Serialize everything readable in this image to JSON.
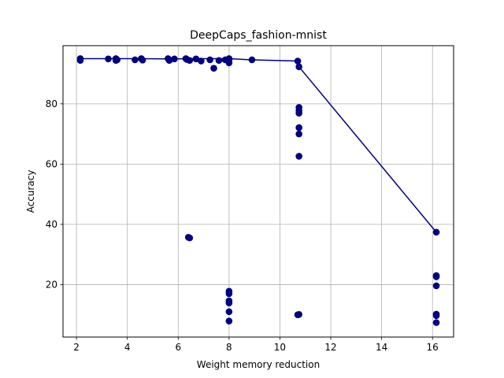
{
  "chart_data": {
    "type": "scatter",
    "title": "DeepCaps_fashion-mnist",
    "xlabel": "Weight memory reduction",
    "ylabel": "Accuracy",
    "xlim": [
      1.47,
      16.83
    ],
    "ylim": [
      2.6,
      99.3
    ],
    "xticks": [
      2,
      4,
      6,
      8,
      10,
      12,
      14,
      16
    ],
    "yticks": [
      20,
      40,
      60,
      80
    ],
    "grid": true,
    "color": "#000080",
    "points": [
      [
        2.15,
        95.0
      ],
      [
        2.15,
        94.4
      ],
      [
        3.25,
        94.9
      ],
      [
        3.55,
        95.0
      ],
      [
        3.55,
        94.4
      ],
      [
        3.6,
        94.6
      ],
      [
        4.3,
        94.6
      ],
      [
        4.55,
        95.0
      ],
      [
        4.6,
        94.5
      ],
      [
        5.6,
        95.0
      ],
      [
        5.65,
        94.4
      ],
      [
        5.85,
        94.9
      ],
      [
        6.3,
        95.0
      ],
      [
        6.35,
        94.7
      ],
      [
        6.45,
        94.4
      ],
      [
        6.7,
        94.9
      ],
      [
        6.9,
        94.2
      ],
      [
        7.25,
        94.6
      ],
      [
        7.4,
        91.8
      ],
      [
        7.6,
        94.4
      ],
      [
        7.85,
        94.6
      ],
      [
        8.0,
        95.0
      ],
      [
        8.0,
        94.6
      ],
      [
        8.0,
        93.6
      ],
      [
        8.9,
        94.6
      ],
      [
        6.4,
        35.7
      ],
      [
        6.45,
        35.5
      ],
      [
        8.0,
        17.8
      ],
      [
        8.0,
        17.0
      ],
      [
        8.0,
        14.6
      ],
      [
        8.0,
        13.9
      ],
      [
        8.0,
        11.0
      ],
      [
        8.0,
        7.9
      ],
      [
        10.7,
        94.2
      ],
      [
        10.75,
        92.3
      ],
      [
        10.75,
        78.8
      ],
      [
        10.75,
        77.8
      ],
      [
        10.75,
        76.9
      ],
      [
        10.75,
        72.1
      ],
      [
        10.75,
        70.0
      ],
      [
        10.75,
        62.6
      ],
      [
        10.75,
        10.1
      ],
      [
        10.7,
        10.0
      ],
      [
        16.15,
        37.4
      ],
      [
        16.15,
        23.0
      ],
      [
        16.15,
        22.6
      ],
      [
        16.15,
        19.6
      ],
      [
        16.15,
        10.2
      ],
      [
        16.15,
        9.7
      ],
      [
        16.15,
        7.4
      ]
    ],
    "frontier": [
      [
        2.15,
        95.0
      ],
      [
        3.55,
        95.0
      ],
      [
        4.55,
        95.0
      ],
      [
        5.85,
        94.9
      ],
      [
        6.3,
        95.0
      ],
      [
        8.0,
        95.0
      ],
      [
        8.9,
        94.6
      ],
      [
        10.7,
        94.2
      ],
      [
        10.75,
        92.3
      ],
      [
        16.15,
        37.4
      ]
    ]
  }
}
